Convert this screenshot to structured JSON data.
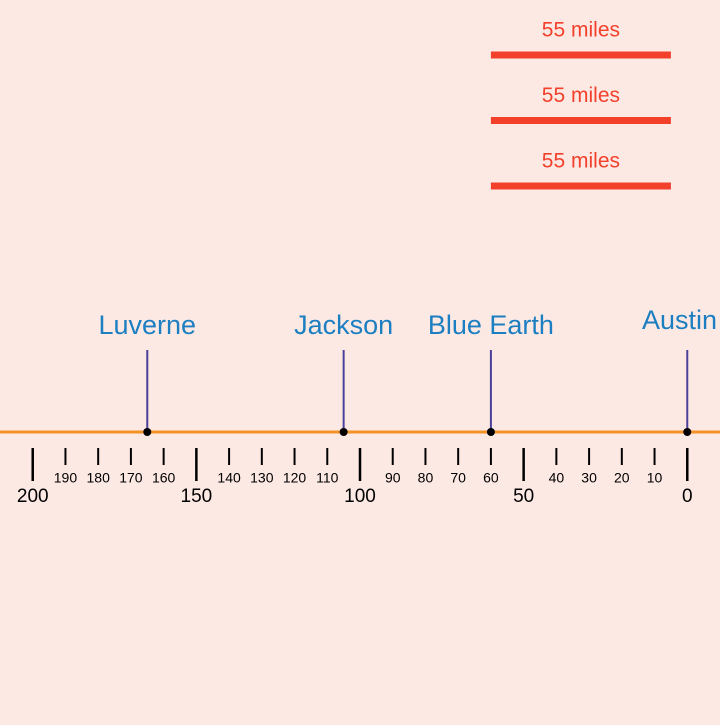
{
  "number_line": {
    "xlim": [
      210,
      -10
    ],
    "color": "#f39224",
    "major_ticks": [
      200,
      150,
      100,
      50,
      0
    ],
    "minor_ticks": [
      190,
      180,
      170,
      160,
      140,
      130,
      120,
      110,
      90,
      80,
      70,
      60,
      40,
      30,
      20,
      10
    ]
  },
  "cities": [
    {
      "name": "Luverne",
      "position": 165
    },
    {
      "name": "Jackson",
      "position": 105
    },
    {
      "name": "Blue Earth",
      "position": 60
    },
    {
      "name": "Austin",
      "position": 0
    }
  ],
  "city_color": "#1b7fc1",
  "scale_bars": [
    {
      "label": "55 miles",
      "from": 60,
      "length": 55
    },
    {
      "label": "55 miles",
      "from": 60,
      "length": 55
    },
    {
      "label": "55 miles",
      "from": 60,
      "length": 55
    }
  ],
  "bar_color": "#f2402b"
}
